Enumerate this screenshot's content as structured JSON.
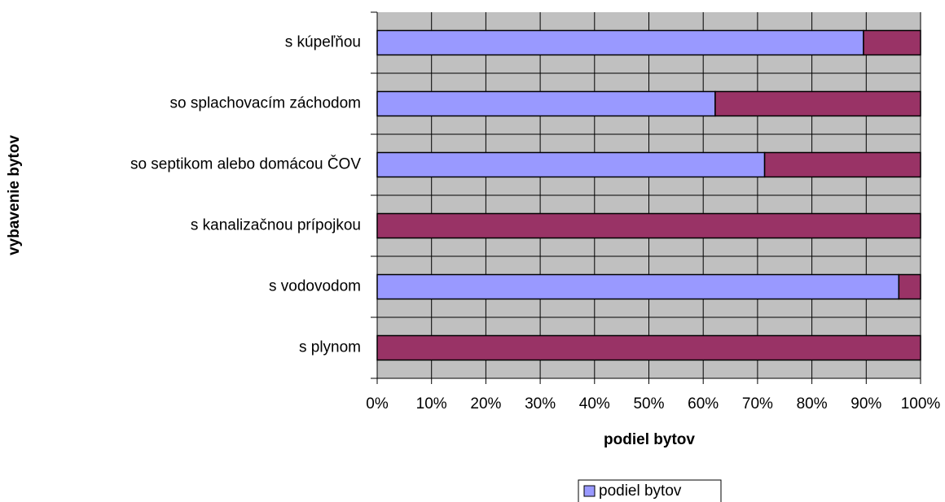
{
  "chart_data": {
    "type": "bar",
    "orientation": "horizontal",
    "stacked": true,
    "xlabel": "podiel bytov",
    "ylabel": "vybavenie bytov",
    "categories": [
      "s kúpeľňou",
      "so splachovacím záchodom",
      "so septikom alebo domácou ČOV",
      "s kanalizačnou prípojkou",
      "s vodovodom",
      "s plynom"
    ],
    "series": [
      {
        "name": "podiel bytov",
        "color": "#9999ff",
        "values": [
          89.5,
          62.2,
          71.3,
          0,
          96,
          0
        ]
      },
      {
        "color": "#993366",
        "values": [
          10.5,
          37.8,
          28.7,
          100,
          4,
          100
        ]
      }
    ],
    "xlim": [
      0,
      100
    ],
    "xticks": [
      {
        "value": 0,
        "label": "0%"
      },
      {
        "value": 10,
        "label": "10%"
      },
      {
        "value": 20,
        "label": "20%"
      },
      {
        "value": 30,
        "label": "30%"
      },
      {
        "value": 40,
        "label": "40%"
      },
      {
        "value": 50,
        "label": "50%"
      },
      {
        "value": 60,
        "label": "60%"
      },
      {
        "value": 70,
        "label": "70%"
      },
      {
        "value": 80,
        "label": "80%"
      },
      {
        "value": 90,
        "label": "90%"
      },
      {
        "value": 100,
        "label": "100%"
      }
    ],
    "grid": true,
    "legend": "bottom",
    "background": "#c0c0c0"
  }
}
